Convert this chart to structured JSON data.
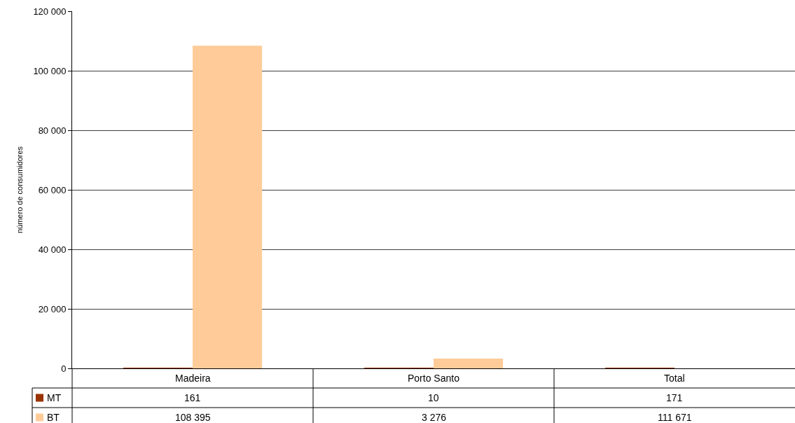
{
  "chart_data": {
    "type": "bar",
    "ylabel": "número de consumidores",
    "categories": [
      "Madeira",
      "Porto Santo",
      "Total"
    ],
    "series": [
      {
        "name": "MT",
        "color": "#993300",
        "values": [
          161,
          10,
          171
        ],
        "value_labels": [
          "161",
          "10",
          "171"
        ]
      },
      {
        "name": "BT",
        "color": "#ffcc99",
        "values": [
          108395,
          3276,
          null
        ],
        "value_labels": [
          "108 395",
          "3 276",
          "111 671"
        ]
      }
    ],
    "ylim": [
      0,
      120000
    ],
    "yticks": [
      0,
      {
        "value": 20000,
        "label": "20 000"
      },
      {
        "value": 40000,
        "label": "40 000"
      },
      {
        "value": 60000,
        "label": "60 000"
      },
      {
        "value": 80000,
        "label": "80 000"
      },
      {
        "value": 100000,
        "label": "100 000"
      },
      {
        "value": 120000,
        "label": "120 000"
      }
    ],
    "grid": "y",
    "legend": "bottom left"
  }
}
